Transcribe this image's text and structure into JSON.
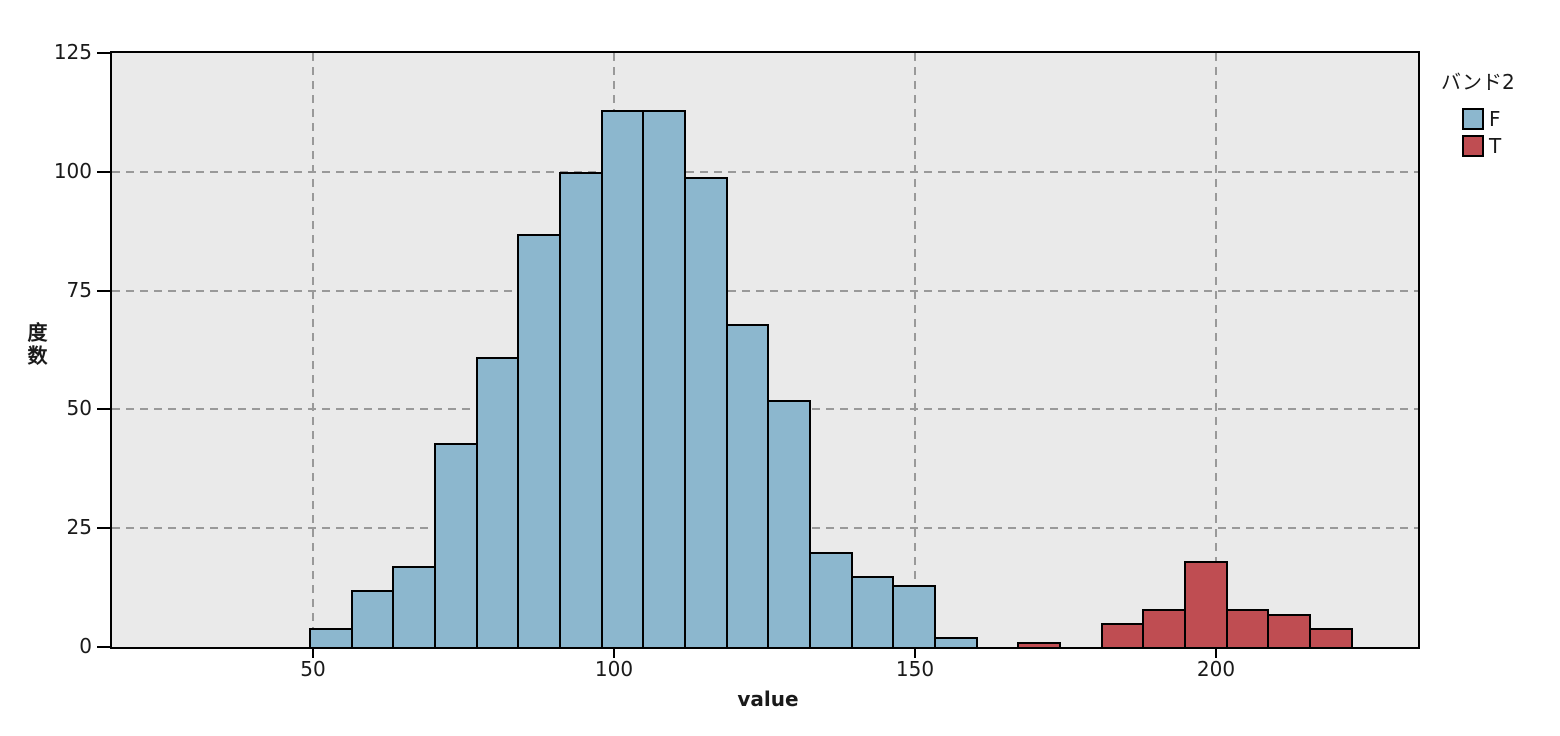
{
  "chart_data": {
    "type": "histogram",
    "title": "",
    "xlabel": "value",
    "ylabel": "度数",
    "legend": {
      "title": "バンド2",
      "position": "right",
      "entries": [
        {
          "label": "F",
          "color": "#8cb7ce"
        },
        {
          "label": "T",
          "color": "#bf4d52"
        }
      ]
    },
    "xlim": [
      16.6,
      233.6
    ],
    "ylim": [
      0,
      125
    ],
    "x_ticks": [
      50,
      100,
      150,
      200
    ],
    "y_ticks": [
      0,
      25,
      50,
      75,
      100,
      125
    ],
    "grid": {
      "x": [
        50,
        100,
        150,
        200
      ],
      "y": [
        25,
        50,
        75,
        100
      ],
      "style": "dashed",
      "color": "#999999"
    },
    "plot_bg": "#eaeaea",
    "bar_border": "#000000",
    "bin_width": 6.92,
    "series": [
      {
        "name": "F",
        "color": "#8cb7ce",
        "bins": [
          {
            "x0": 49.5,
            "x1": 56.42,
            "count": 4
          },
          {
            "x0": 56.42,
            "x1": 63.35,
            "count": 12
          },
          {
            "x0": 63.35,
            "x1": 70.27,
            "count": 17
          },
          {
            "x0": 70.27,
            "x1": 77.19,
            "count": 43
          },
          {
            "x0": 77.19,
            "x1": 84.12,
            "count": 61
          },
          {
            "x0": 84.12,
            "x1": 91.04,
            "count": 87
          },
          {
            "x0": 91.04,
            "x1": 97.96,
            "count": 100
          },
          {
            "x0": 97.96,
            "x1": 104.88,
            "count": 113
          },
          {
            "x0": 104.88,
            "x1": 111.81,
            "count": 113
          },
          {
            "x0": 111.81,
            "x1": 118.73,
            "count": 99
          },
          {
            "x0": 118.73,
            "x1": 125.65,
            "count": 68
          },
          {
            "x0": 125.65,
            "x1": 132.58,
            "count": 52
          },
          {
            "x0": 132.58,
            "x1": 139.5,
            "count": 20
          },
          {
            "x0": 139.5,
            "x1": 146.42,
            "count": 15
          },
          {
            "x0": 146.42,
            "x1": 153.35,
            "count": 13
          },
          {
            "x0": 153.35,
            "x1": 160.27,
            "count": 2
          }
        ]
      },
      {
        "name": "T",
        "color": "#bf4d52",
        "bins": [
          {
            "x0": 167.19,
            "x1": 174.12,
            "count": 1
          },
          {
            "x0": 181.04,
            "x1": 187.96,
            "count": 5
          },
          {
            "x0": 187.96,
            "x1": 194.88,
            "count": 8
          },
          {
            "x0": 194.88,
            "x1": 201.81,
            "count": 18
          },
          {
            "x0": 201.81,
            "x1": 208.73,
            "count": 8
          },
          {
            "x0": 208.73,
            "x1": 215.65,
            "count": 7
          },
          {
            "x0": 215.65,
            "x1": 222.57,
            "count": 4
          }
        ]
      }
    ]
  }
}
